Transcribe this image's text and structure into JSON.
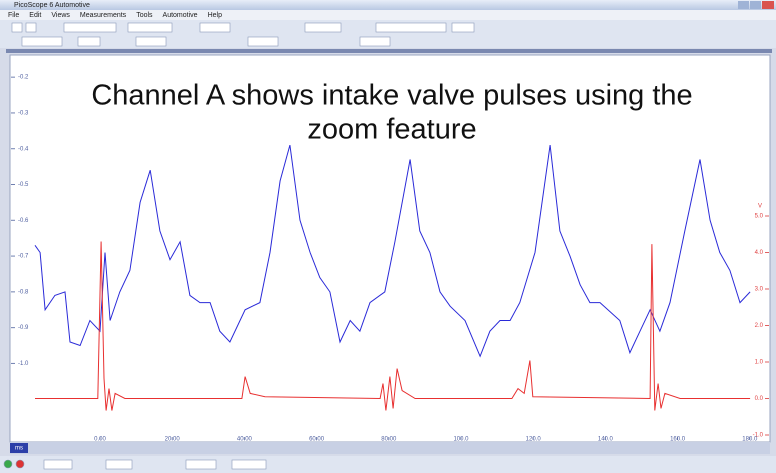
{
  "window_title": "PicoScope 6 Automotive",
  "menu": [
    "File",
    "Edit",
    "Views",
    "Measurements",
    "Tools",
    "Automotive",
    "Help"
  ],
  "chart_data": {
    "type": "line",
    "annotation": [
      "Channel A shows intake valve pulses using the",
      "zoom feature"
    ],
    "x_unit": "ms",
    "y2_unit": "V",
    "xlim": [
      -18,
      182
    ],
    "xticks": [
      {
        "value": 0,
        "label": "0.00"
      },
      {
        "value": 20,
        "label": "20.00"
      },
      {
        "value": 40,
        "label": "40.00"
      },
      {
        "value": 60,
        "label": "60.00"
      },
      {
        "value": 80,
        "label": "80.00"
      },
      {
        "value": 100,
        "label": "100.0"
      },
      {
        "value": 120,
        "label": "120.0"
      },
      {
        "value": 140,
        "label": "140.0"
      },
      {
        "value": 160,
        "label": "160.0"
      },
      {
        "value": 180,
        "label": "180.0"
      }
    ],
    "ylim": [
      -1.2,
      -0.18
    ],
    "yticks": [
      -0.2,
      -0.3,
      -0.4,
      -0.5,
      -0.6,
      -0.7,
      -0.8,
      -0.9,
      {
        "value": -1,
        "label": "-1.0"
      }
    ],
    "y2lim": [
      -1,
      9
    ],
    "y2ticks": [
      {
        "value": 5,
        "label": "5.0"
      },
      {
        "value": 4,
        "label": "4.0"
      },
      {
        "value": 3,
        "label": "3.0"
      },
      {
        "value": 2,
        "label": "2.0"
      },
      {
        "value": 1,
        "label": "1.0"
      },
      {
        "value": 0,
        "label": "0.0"
      },
      {
        "value": -1,
        "label": "-1.0"
      }
    ],
    "series": [
      {
        "color": "#2a2ad8",
        "x": [
          -18.0,
          -16.6,
          -15.2,
          -12.5,
          -9.7,
          -8.3,
          -5.5,
          -2.8,
          0,
          1.4,
          2.8,
          5.5,
          8.3,
          11.1,
          13.9,
          16.6,
          19.4,
          22.2,
          24.9,
          27.7,
          30.5,
          33.2,
          36.0,
          40.2,
          44.3,
          47.1,
          49.9,
          52.6,
          55.4,
          58.2,
          60.9,
          63.7,
          66.5,
          69.3,
          72.0,
          74.8,
          78.9,
          81.7,
          85.9,
          88.6,
          91.4,
          94.2,
          97.0,
          101.1,
          105.3,
          108.0,
          110.8,
          113.6,
          116.3,
          120.5,
          124.7,
          127.4,
          130.2,
          133.0,
          135.7,
          138.5,
          144.0,
          146.8,
          149.6,
          152.4,
          155.1,
          157.9,
          162.0,
          166.2,
          169.0,
          171.7,
          174.5,
          177.3,
          180.1
        ],
        "values": [
          -0.67,
          -0.69,
          -0.85,
          -0.81,
          -0.8,
          -0.94,
          -0.95,
          -0.88,
          -0.91,
          -0.69,
          -0.88,
          -0.8,
          -0.74,
          -0.55,
          -0.46,
          -0.63,
          -0.71,
          -0.66,
          -0.81,
          -0.83,
          -0.83,
          -0.91,
          -0.94,
          -0.85,
          -0.83,
          -0.69,
          -0.49,
          -0.39,
          -0.6,
          -0.69,
          -0.76,
          -0.8,
          -0.94,
          -0.88,
          -0.91,
          -0.83,
          -0.8,
          -0.66,
          -0.43,
          -0.63,
          -0.69,
          -0.8,
          -0.84,
          -0.88,
          -0.98,
          -0.91,
          -0.88,
          -0.88,
          -0.83,
          -0.69,
          -0.39,
          -0.63,
          -0.7,
          -0.78,
          -0.83,
          -0.83,
          -0.88,
          -0.97,
          -0.91,
          -0.85,
          -0.91,
          -0.83,
          -0.63,
          -0.43,
          -0.6,
          -0.69,
          -0.74,
          -0.83,
          -0.8
        ]
      },
      {
        "color": "#e83030",
        "axis": "y2",
        "x": [
          -18.0,
          -0.6,
          0.3,
          1.1,
          1.7,
          2.5,
          3.3,
          4.2,
          6.9,
          39.3,
          40.2,
          41.6,
          45.7,
          77.6,
          78.4,
          79.2,
          80.3,
          81.2,
          82.3,
          83.7,
          87.3,
          114.1,
          115.8,
          117.5,
          119.1,
          119.9,
          152.4,
          152.9,
          153.7,
          154.6,
          155.4,
          156.5,
          160.7,
          180.1
        ],
        "values": [
          0,
          0,
          4.3,
          0.55,
          -0.33,
          0.27,
          -0.33,
          0.14,
          0,
          0,
          0.6,
          0.14,
          0.05,
          0,
          0.41,
          -0.33,
          0.6,
          -0.27,
          0.82,
          0.22,
          0,
          0,
          0.27,
          0.14,
          1.04,
          0.05,
          0,
          4.23,
          -0.33,
          0.41,
          -0.27,
          0.14,
          0,
          0
        ]
      }
    ]
  }
}
